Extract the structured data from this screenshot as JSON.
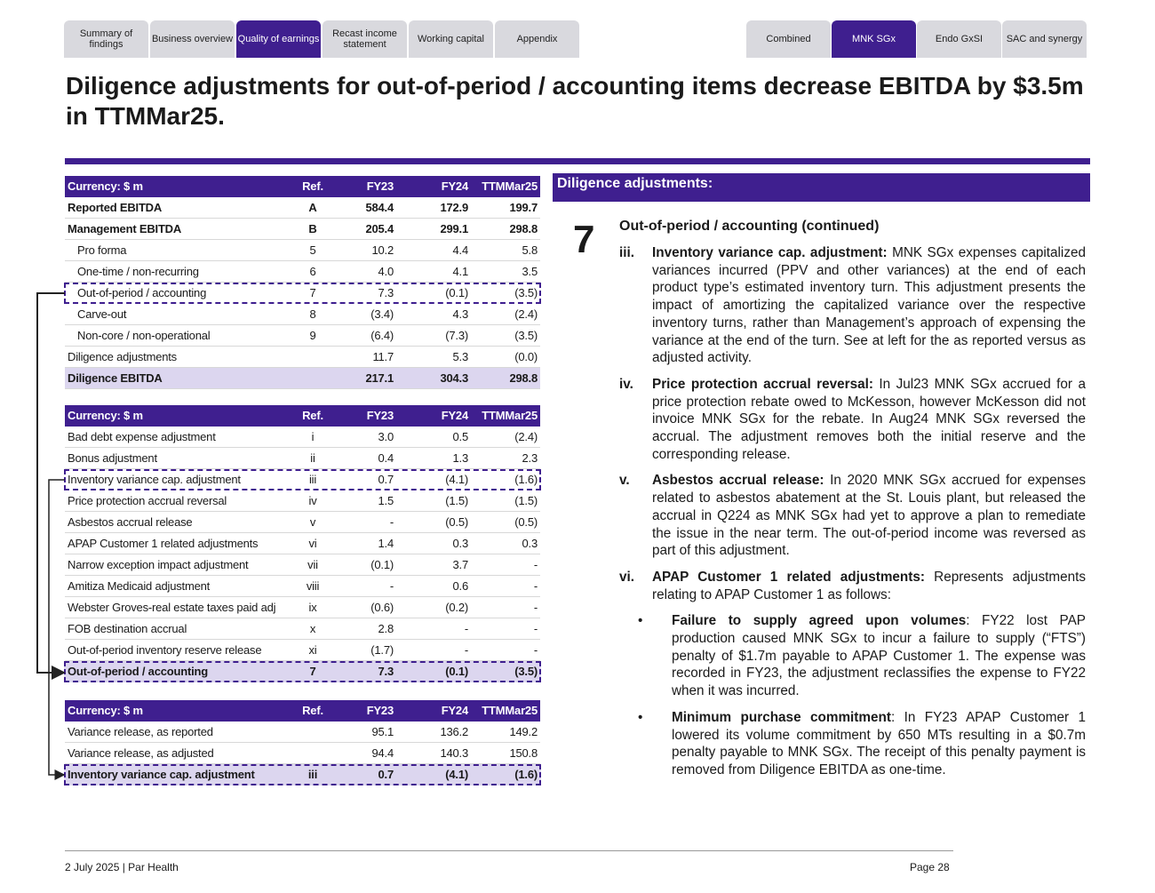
{
  "nav": {
    "left": [
      "Summary of findings",
      "Business overview",
      "Quality of earnings",
      "Recast income statement",
      "Working capital",
      "Appendix"
    ],
    "left_active": 2,
    "right": [
      "Combined",
      "MNK SGx",
      "Endo GxSI",
      "SAC and synergy"
    ],
    "right_active": 1
  },
  "header": {
    "title": "Diligence adjustments for out-of-period / accounting items decrease EBITDA by $3.5m in TTMMar25."
  },
  "tables": [
    {
      "header": [
        "Currency: $ m",
        "Ref.",
        "FY23",
        "FY24",
        "TTMMar25"
      ],
      "rows": [
        [
          "Reported EBITDA",
          "A",
          "584.4",
          "172.9",
          "199.7"
        ],
        [
          "Management EBITDA",
          "B",
          "205.4",
          "299.1",
          "298.8"
        ],
        [
          "Pro forma",
          "5",
          "10.2",
          "4.4",
          "5.8"
        ],
        [
          "One-time / non-recurring",
          "6",
          "4.0",
          "4.1",
          "3.5"
        ],
        [
          "Out-of-period / accounting",
          "7",
          "7.3",
          "(0.1)",
          "(3.5)"
        ],
        [
          "Carve-out",
          "8",
          "(3.4)",
          "4.3",
          "(2.4)"
        ],
        [
          "Non-core / non-operational",
          "9",
          "(6.4)",
          "(7.3)",
          "(3.5)"
        ],
        [
          "Diligence adjustments",
          null,
          "11.7",
          "5.3",
          "(0.0)"
        ],
        [
          "Diligence EBITDA",
          null,
          "217.1",
          "304.3",
          "298.8"
        ]
      ]
    },
    {
      "header": [
        "Currency: $ m",
        "Ref.",
        "FY23",
        "FY24",
        "TTMMar25"
      ],
      "rows": [
        [
          "Bad debt expense adjustment",
          "i",
          "3.0",
          "0.5",
          "(2.4)"
        ],
        [
          "Bonus adjustment",
          "ii",
          "0.4",
          "1.3",
          "2.3"
        ],
        [
          "Inventory variance cap. adjustment",
          "iii",
          "0.7",
          "(4.1)",
          "(1.6)"
        ],
        [
          "Price protection accrual reversal",
          "iv",
          "1.5",
          "(1.5)",
          "(1.5)"
        ],
        [
          "Asbestos accrual release",
          "v",
          "-",
          "(0.5)",
          "(0.5)"
        ],
        [
          "APAP Customer 1 related adjustments",
          "vi",
          "1.4",
          "0.3",
          "0.3"
        ],
        [
          "Narrow exception impact adjustment",
          "vii",
          "(0.1)",
          "3.7",
          "-"
        ],
        [
          "Amitiza Medicaid adjustment",
          "viii",
          "-",
          "0.6",
          "-"
        ],
        [
          "Webster Groves-real estate taxes paid adj",
          "ix",
          "(0.6)",
          "(0.2)",
          "-"
        ],
        [
          "FOB destination accrual",
          "x",
          "2.8",
          "-",
          "-"
        ],
        [
          "Out-of-period inventory reserve release",
          "xi",
          "(1.7)",
          "-",
          "-"
        ],
        [
          "Out-of-period / accounting",
          "7",
          "7.3",
          "(0.1)",
          "(3.5)"
        ]
      ]
    },
    {
      "header": [
        "Currency: $ m",
        "Ref.",
        "FY23",
        "FY24",
        "TTMMar25"
      ],
      "rows": [
        [
          "Variance release, as reported",
          null,
          "95.1",
          "136.2",
          "149.2"
        ],
        [
          "Variance release, as adjusted",
          null,
          "94.4",
          "140.3",
          "150.8"
        ],
        [
          "Inventory variance cap. adjustment",
          "iii",
          "0.7",
          "(4.1)",
          "(1.6)"
        ]
      ]
    }
  ],
  "panel": {
    "header": "Diligence adjustments:",
    "number": "7",
    "subtitle": "Out-of-period / accounting (continued)",
    "items": [
      {
        "numeral": "iii.",
        "lead": "Inventory variance cap. adjustment:",
        "text": " MNK SGx expenses capitalized variances incurred (PPV and other variances) at the end of each product type’s estimated inventory turn. This adjustment presents the impact of amortizing the capitalized variance over the respective inventory turns, rather than Management’s approach of expensing the variance at the end of the turn. See at left for the as reported versus as adjusted activity."
      },
      {
        "numeral": "iv.",
        "lead": "Price protection accrual reversal:",
        "text": " In Jul23 MNK SGx accrued for a price protection rebate owed to McKesson, however McKesson did not invoice MNK SGx for the rebate. In Aug24 MNK SGx reversed the accrual. The adjustment removes both the initial reserve and the corresponding release."
      },
      {
        "numeral": "v.",
        "lead": "Asbestos accrual release:",
        "text": " In 2020 MNK SGx accrued for expenses related to asbestos abatement at the St. Louis plant, but released the accrual in Q224 as MNK SGx had yet to approve a plan to remediate the issue in the near term. The out-of-period income was reversed as part of this adjustment."
      },
      {
        "numeral": "vi.",
        "lead": "APAP Customer 1 related adjustments:",
        "text": " Represents adjustments relating to APAP Customer 1 as follows:",
        "bullets": [
          {
            "lead": "Failure to supply agreed upon volumes",
            "text": ": FY22 lost PAP production caused MNK SGx to incur a failure to supply (“FTS”) penalty of $1.7m payable to APAP Customer 1. The expense was recorded in FY23, the adjustment reclassifies the expense to FY22 when it was incurred."
          },
          {
            "lead": "Minimum purchase commitment",
            "text": ": In FY23 APAP Customer 1 lowered its volume commitment by 650 MTs resulting in a $0.7m penalty payable to MNK SGx. The receipt of this penalty payment is removed from Diligence EBITDA as one-time."
          }
        ]
      }
    ]
  },
  "footer": {
    "left": "2 July 2025 | Par Health",
    "right": "Page 28"
  }
}
